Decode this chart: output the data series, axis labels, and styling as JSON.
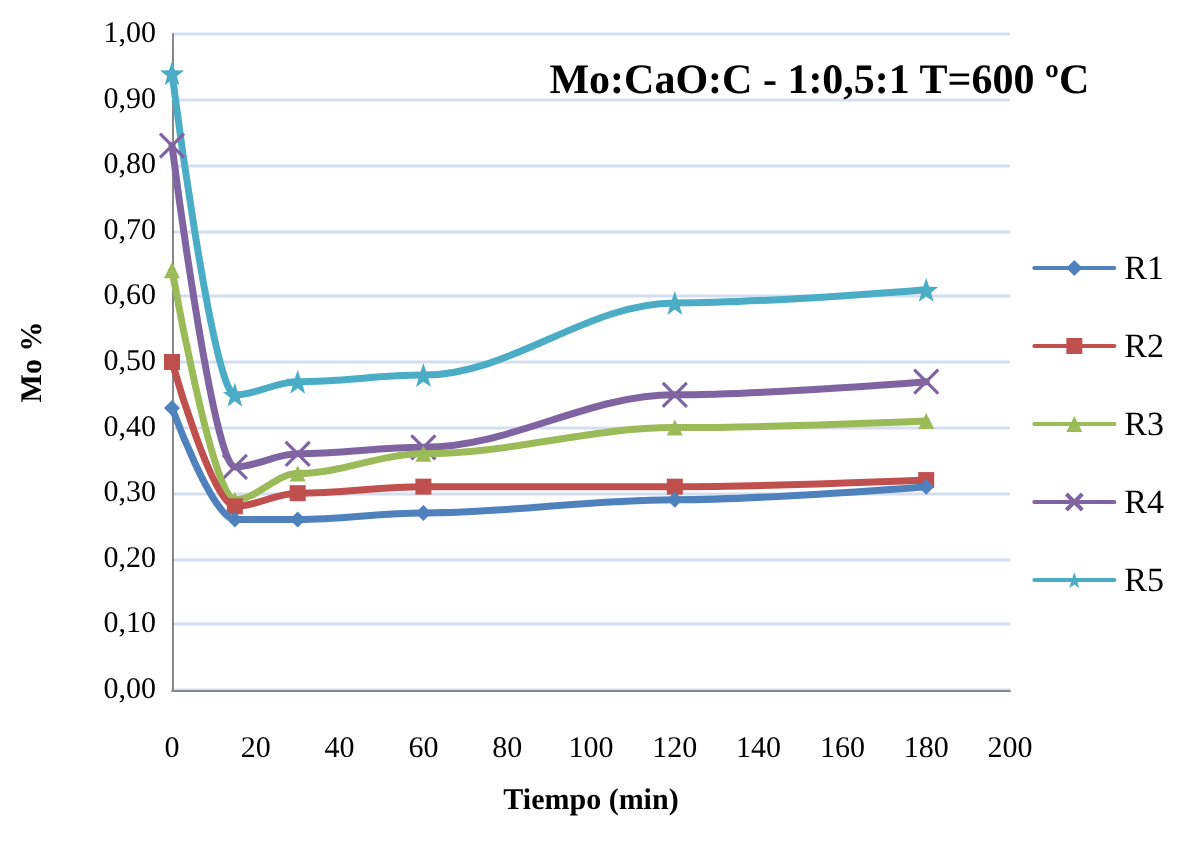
{
  "chart_data": {
    "type": "line",
    "title": "Mo:CaO:C - 1:0,5:1 T=600 ºC",
    "xlabel": "Tiempo (min)",
    "ylabel": "Mo %",
    "x": [
      0,
      15,
      30,
      60,
      120,
      180
    ],
    "series": [
      {
        "name": "R1",
        "color": "#4f81bd",
        "marker": "diamond",
        "values": [
          0.43,
          0.26,
          0.26,
          0.27,
          0.29,
          0.31
        ]
      },
      {
        "name": "R2",
        "color": "#c0504d",
        "marker": "square",
        "values": [
          0.5,
          0.28,
          0.3,
          0.31,
          0.31,
          0.32
        ]
      },
      {
        "name": "R3",
        "color": "#9bbb59",
        "marker": "triangle",
        "values": [
          0.64,
          0.29,
          0.33,
          0.36,
          0.4,
          0.41
        ]
      },
      {
        "name": "R4",
        "color": "#8064a2",
        "marker": "cross",
        "values": [
          0.83,
          0.34,
          0.36,
          0.37,
          0.45,
          0.47
        ]
      },
      {
        "name": "R5",
        "color": "#4bacc6",
        "marker": "star",
        "values": [
          0.94,
          0.45,
          0.47,
          0.48,
          0.59,
          0.61
        ]
      }
    ],
    "xlim": [
      0,
      200
    ],
    "xticks": [
      0,
      20,
      40,
      60,
      80,
      100,
      120,
      140,
      160,
      180,
      200
    ],
    "ylim": [
      0,
      1
    ],
    "yticks": [
      {
        "value": 0,
        "label": "0,00"
      },
      {
        "value": 0.1,
        "label": "0,10"
      },
      {
        "value": 0.2,
        "label": "0,20"
      },
      {
        "value": 0.3,
        "label": "0,30"
      },
      {
        "value": 0.4,
        "label": "0,40"
      },
      {
        "value": 0.5,
        "label": "0,50"
      },
      {
        "value": 0.6,
        "label": "0,60"
      },
      {
        "value": 0.7,
        "label": "0,70"
      },
      {
        "value": 0.8,
        "label": "0,80"
      },
      {
        "value": 0.9,
        "label": "0,90"
      },
      {
        "value": 1,
        "label": "1,00"
      }
    ],
    "grid": "y",
    "legend": "right",
    "line_style": "solid"
  }
}
